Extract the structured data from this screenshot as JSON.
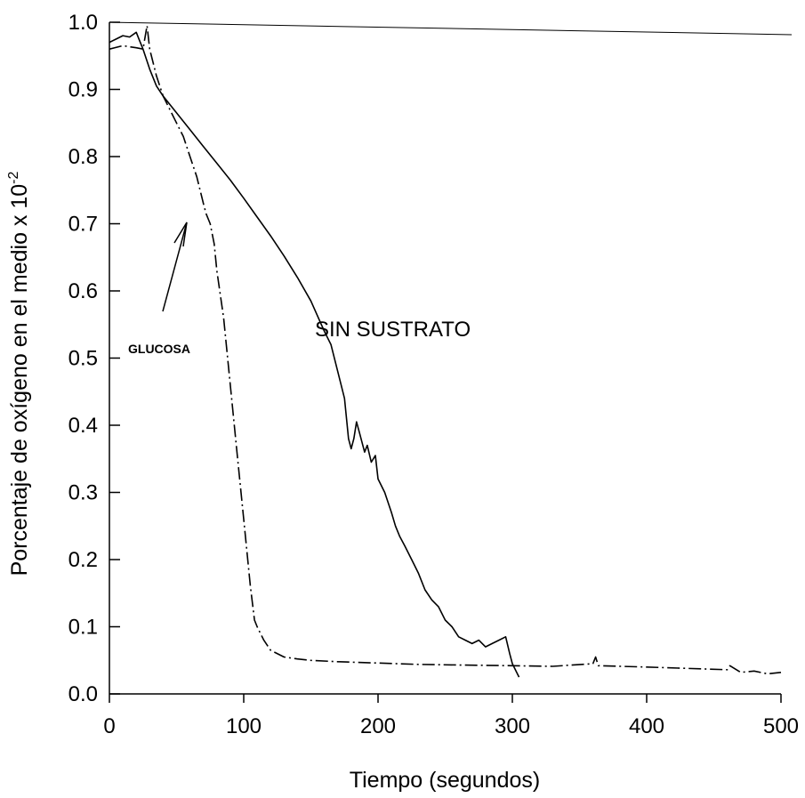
{
  "chart_data": {
    "type": "line",
    "title": "",
    "xlabel": "Tiempo (segundos)",
    "ylabel_main": "Porcentaje de oxígeno en el medio x 10",
    "ylabel_exponent": "-2",
    "xlim": [
      0,
      500
    ],
    "ylim": [
      0,
      1.0
    ],
    "x_ticks": [
      0,
      100,
      200,
      300,
      400,
      500
    ],
    "x_tick_labels": [
      "0",
      "100",
      "200",
      "300",
      "400",
      "500"
    ],
    "y_ticks": [
      0.0,
      0.1,
      0.2,
      0.3,
      0.4,
      0.5,
      0.6,
      0.7,
      0.8,
      0.9,
      1.0
    ],
    "y_tick_labels": [
      "0.0",
      "0.1",
      "0.2",
      "0.3",
      "0.4",
      "0.5",
      "0.6",
      "0.7",
      "0.8",
      "0.9",
      "1.0"
    ],
    "grid": false,
    "legend": "none",
    "series": [
      {
        "label": "SIN SUSTRATO",
        "style": "solid",
        "color": "#000000",
        "points": [
          [
            0,
            0.97
          ],
          [
            5,
            0.975
          ],
          [
            10,
            0.98
          ],
          [
            15,
            0.978
          ],
          [
            20,
            0.985
          ],
          [
            22,
            0.975
          ],
          [
            25,
            0.96
          ],
          [
            30,
            0.93
          ],
          [
            35,
            0.905
          ],
          [
            40,
            0.89
          ],
          [
            50,
            0.865
          ],
          [
            60,
            0.84
          ],
          [
            70,
            0.815
          ],
          [
            80,
            0.79
          ],
          [
            90,
            0.765
          ],
          [
            100,
            0.738
          ],
          [
            110,
            0.71
          ],
          [
            120,
            0.682
          ],
          [
            130,
            0.652
          ],
          [
            140,
            0.62
          ],
          [
            150,
            0.585
          ],
          [
            160,
            0.54
          ],
          [
            165,
            0.52
          ],
          [
            170,
            0.48
          ],
          [
            175,
            0.44
          ],
          [
            178,
            0.38
          ],
          [
            180,
            0.365
          ],
          [
            182,
            0.38
          ],
          [
            184,
            0.405
          ],
          [
            186,
            0.39
          ],
          [
            190,
            0.36
          ],
          [
            192,
            0.37
          ],
          [
            195,
            0.345
          ],
          [
            198,
            0.355
          ],
          [
            200,
            0.32
          ],
          [
            205,
            0.3
          ],
          [
            210,
            0.27
          ],
          [
            213,
            0.25
          ],
          [
            216,
            0.235
          ],
          [
            220,
            0.22
          ],
          [
            225,
            0.2
          ],
          [
            230,
            0.18
          ],
          [
            235,
            0.155
          ],
          [
            240,
            0.14
          ],
          [
            245,
            0.13
          ],
          [
            250,
            0.11
          ],
          [
            255,
            0.1
          ],
          [
            260,
            0.085
          ],
          [
            265,
            0.08
          ],
          [
            270,
            0.075
          ],
          [
            275,
            0.08
          ],
          [
            280,
            0.07
          ],
          [
            285,
            0.075
          ],
          [
            290,
            0.08
          ],
          [
            295,
            0.085
          ],
          [
            298,
            0.06
          ],
          [
            300,
            0.045
          ],
          [
            305,
            0.025
          ]
        ]
      },
      {
        "label": "GLUCOSA",
        "style": "dash-dot",
        "color": "#000000",
        "points": [
          [
            0,
            0.96
          ],
          [
            10,
            0.965
          ],
          [
            20,
            0.962
          ],
          [
            25,
            0.96
          ],
          [
            28,
            0.995
          ],
          [
            30,
            0.96
          ],
          [
            35,
            0.92
          ],
          [
            40,
            0.89
          ],
          [
            50,
            0.85
          ],
          [
            55,
            0.83
          ],
          [
            60,
            0.8
          ],
          [
            65,
            0.77
          ],
          [
            70,
            0.73
          ],
          [
            72,
            0.715
          ],
          [
            75,
            0.7
          ],
          [
            78,
            0.67
          ],
          [
            80,
            0.63
          ],
          [
            85,
            0.56
          ],
          [
            90,
            0.46
          ],
          [
            95,
            0.36
          ],
          [
            100,
            0.26
          ],
          [
            105,
            0.16
          ],
          [
            108,
            0.11
          ],
          [
            110,
            0.1
          ],
          [
            115,
            0.08
          ],
          [
            120,
            0.065
          ],
          [
            130,
            0.055
          ],
          [
            140,
            0.052
          ],
          [
            150,
            0.05
          ],
          [
            170,
            0.048
          ],
          [
            200,
            0.046
          ],
          [
            230,
            0.044
          ],
          [
            260,
            0.043
          ],
          [
            300,
            0.042
          ],
          [
            330,
            0.041
          ],
          [
            360,
            0.045
          ],
          [
            362,
            0.055
          ],
          [
            364,
            0.042
          ],
          [
            400,
            0.04
          ],
          [
            430,
            0.038
          ],
          [
            460,
            0.036
          ],
          [
            462,
            0.042
          ],
          [
            470,
            0.032
          ],
          [
            480,
            0.034
          ],
          [
            490,
            0.03
          ],
          [
            500,
            0.032
          ]
        ]
      }
    ],
    "annotations": {
      "sin_sustrato": "SIN SUSTRATO",
      "glucosa": "GLUCOSA"
    }
  }
}
